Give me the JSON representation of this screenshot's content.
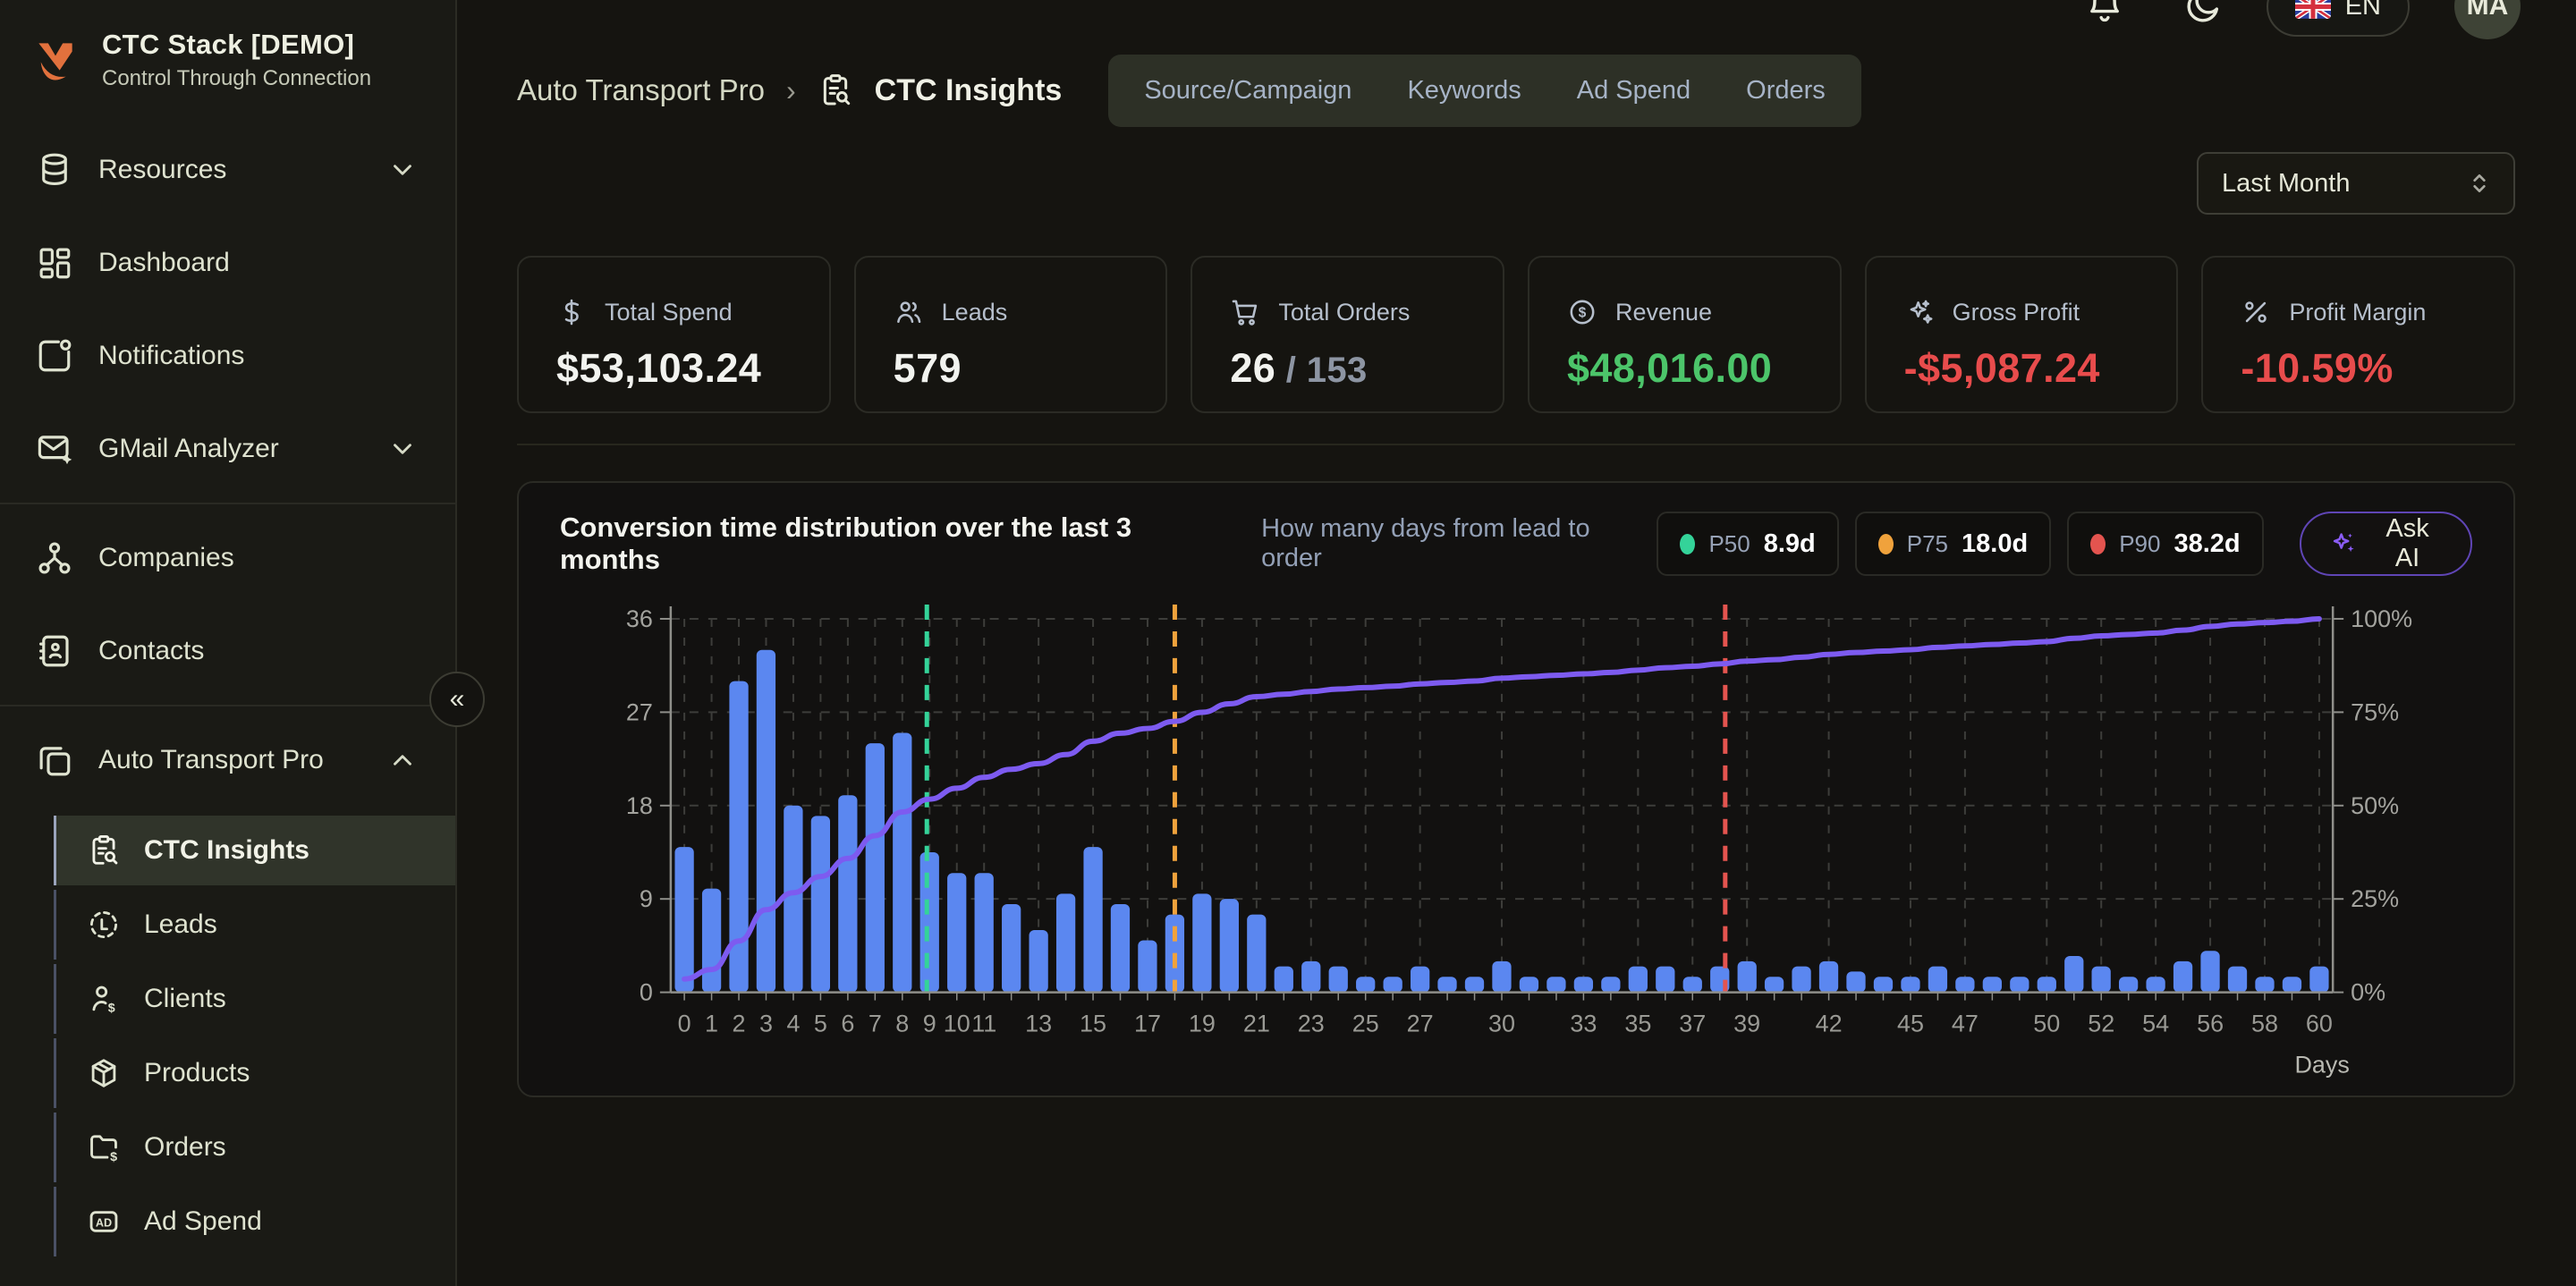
{
  "app": {
    "title": "CTC Stack [DEMO]",
    "subtitle": "Control Through Connection"
  },
  "sidebar": {
    "items": [
      {
        "label": "Resources",
        "icon": "database-icon",
        "chevron": "down"
      },
      {
        "label": "Dashboard",
        "icon": "dashboard-icon"
      },
      {
        "label": "Notifications",
        "icon": "notification-icon"
      },
      {
        "label": "GMail Analyzer",
        "icon": "mail-sparkle-icon",
        "chevron": "down"
      },
      {
        "label": "Companies",
        "icon": "org-icon"
      },
      {
        "label": "Contacts",
        "icon": "contacts-icon"
      },
      {
        "label": "Auto Transport Pro",
        "icon": "folders-icon",
        "chevron": "up"
      }
    ],
    "project_items": [
      {
        "label": "CTC Insights",
        "icon": "clipboard-search-icon",
        "active": true
      },
      {
        "label": "Leads",
        "icon": "lead-circle-icon"
      },
      {
        "label": "Clients",
        "icon": "user-dollar-icon"
      },
      {
        "label": "Products",
        "icon": "package-icon"
      },
      {
        "label": "Orders",
        "icon": "folder-dollar-icon"
      },
      {
        "label": "Ad Spend",
        "icon": "ad-badge-icon"
      }
    ],
    "collapse_glyph": "«"
  },
  "breadcrumb": {
    "parent": "Auto Transport Pro",
    "separator": "›",
    "current": "CTC Insights"
  },
  "tabs": [
    {
      "label": "Source/Campaign"
    },
    {
      "label": "Keywords"
    },
    {
      "label": "Ad Spend"
    },
    {
      "label": "Orders"
    }
  ],
  "topbar": {
    "language": "EN",
    "avatar": "MA",
    "icons": [
      "bell-icon",
      "moon-icon"
    ]
  },
  "filters": {
    "period": "Last Month"
  },
  "kpis": [
    {
      "label": "Total Spend",
      "value": "$53,103.24",
      "value_color": "#f2f3ef",
      "icon": "dollar-icon"
    },
    {
      "label": "Leads",
      "value": "579",
      "value_color": "#f2f3ef",
      "icon": "users-icon"
    },
    {
      "label": "Total Orders",
      "value": "26",
      "suffix": " / 153",
      "value_color": "#f2f3ef",
      "icon": "cart-icon"
    },
    {
      "label": "Revenue",
      "value": "$48,016.00",
      "value_color": "#4cc56a",
      "icon": "coin-icon"
    },
    {
      "label": "Gross Profit",
      "value": "-$5,087.24",
      "value_color": "#e84c4c",
      "icon": "sparkles-icon"
    },
    {
      "label": "Profit Margin",
      "value": "-10.59%",
      "value_color": "#e84c4c",
      "icon": "percent-icon"
    }
  ],
  "chart_card": {
    "title": "Conversion time distribution over the last 3 months",
    "subtitle": "How many days from lead to order",
    "badges": [
      {
        "label": "P50",
        "value": "8.9d",
        "color": "#34d399"
      },
      {
        "label": "P75",
        "value": "18.0d",
        "color": "#f0a23c"
      },
      {
        "label": "P90",
        "value": "38.2d",
        "color": "#e4544f"
      }
    ],
    "ask_ai": "Ask AI"
  },
  "chart_data": {
    "type": "bar",
    "title": "Conversion time distribution over the last 3 months",
    "xlabel": "Days",
    "ylim_left": [
      0,
      36
    ],
    "y_ticks_left": [
      0,
      9,
      18,
      27,
      36
    ],
    "y_ticks_right": [
      "0%",
      "25%",
      "50%",
      "75%",
      "100%"
    ],
    "x_tick_labels": [
      "0",
      "1",
      "2",
      "3",
      "4",
      "5",
      "6",
      "7",
      "8",
      "9",
      "10",
      "11",
      "",
      "13",
      "",
      "15",
      "",
      "17",
      "",
      "19",
      "",
      "21",
      "",
      "23",
      "",
      "25",
      "",
      "27",
      "",
      "",
      "30",
      "",
      "",
      "33",
      "",
      "35",
      "",
      "37",
      "",
      "39",
      "",
      "",
      "42",
      "",
      "",
      "45",
      "",
      "47",
      "",
      "",
      "50",
      "",
      "52",
      "",
      "54",
      "",
      "56",
      "",
      "58",
      "",
      "60"
    ],
    "bars": [
      14,
      10,
      30,
      33,
      18,
      17,
      19,
      24,
      25,
      13.5,
      11.5,
      11.5,
      8.5,
      6,
      9.5,
      14,
      8.5,
      5,
      7.5,
      9.5,
      9,
      7.5,
      2.5,
      3,
      2.5,
      1.5,
      1.5,
      2.5,
      1.5,
      1.5,
      3,
      1.5,
      1.5,
      1.5,
      1.5,
      2.5,
      2.5,
      1.5,
      2.5,
      3,
      1.5,
      2.5,
      3,
      2,
      1.5,
      1.5,
      2.5,
      1.5,
      1.5,
      1.5,
      1.5,
      3.5,
      2.5,
      1.5,
      1.5,
      3,
      4,
      2.5,
      1.5,
      1.5,
      2.5
    ],
    "line": {
      "name": "cumulative-percent-of-orders",
      "axis": "right",
      "color": "#7d5bf0"
    },
    "percentiles": {
      "p50": 8.9,
      "p75": 18.0,
      "p90": 38.2
    },
    "colors": {
      "bar": "#5b87f0",
      "line": "#7d5bf0",
      "p50": "#34d399",
      "p75": "#f0a23c",
      "p90": "#e4544f",
      "grid": "#3d3d3a",
      "axis": "#8f8f8a"
    },
    "legend": false,
    "grid": true
  }
}
